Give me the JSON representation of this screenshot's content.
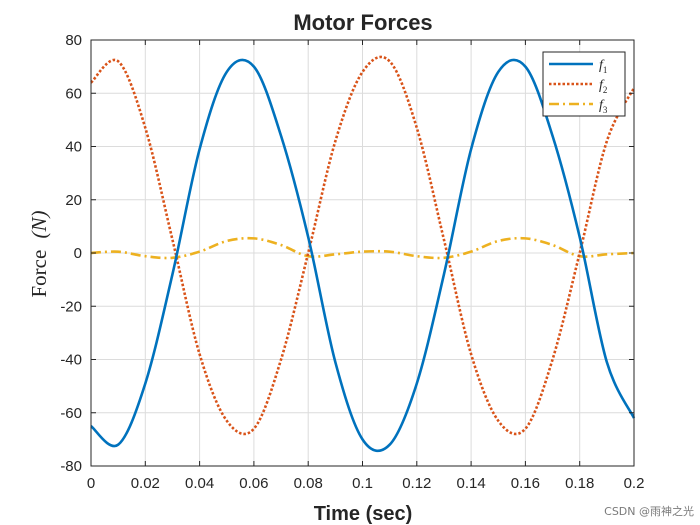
{
  "chart_data": {
    "type": "line",
    "title": "Motor Forces",
    "xlabel": "Time (sec)",
    "ylabel": "Force",
    "ylabel_unit": "(N)",
    "xlim": [
      0,
      0.2
    ],
    "ylim": [
      -80,
      80
    ],
    "grid": true,
    "legend_position": "top-right",
    "xticks": [
      0,
      0.02,
      0.04,
      0.06,
      0.08,
      0.1,
      0.12,
      0.14,
      0.16,
      0.18,
      0.2
    ],
    "xtick_labels": [
      "0",
      "0.02",
      "0.04",
      "0.06",
      "0.08",
      "0.1",
      "0.12",
      "0.14",
      "0.16",
      "0.18",
      "0.2"
    ],
    "yticks": [
      -80,
      -60,
      -40,
      -20,
      0,
      20,
      40,
      60,
      80
    ],
    "ytick_labels": [
      "-80",
      "-60",
      "-40",
      "-20",
      "0",
      "20",
      "40",
      "60",
      "80"
    ],
    "series": [
      {
        "name": "f1",
        "label_base": "f",
        "label_sub": "1",
        "color": "#0072BD",
        "style": "solid",
        "x": [
          0,
          0.01,
          0.02,
          0.03,
          0.04,
          0.05,
          0.06,
          0.07,
          0.08,
          0.09,
          0.1,
          0.11,
          0.12,
          0.13,
          0.14,
          0.15,
          0.16,
          0.17,
          0.18,
          0.19,
          0.2
        ],
        "values": [
          -65,
          -72,
          -49,
          -8,
          39,
          68,
          70,
          44,
          6,
          -41,
          -70,
          -72,
          -49,
          -8,
          39,
          68,
          70,
          44,
          6,
          -41,
          -62
        ]
      },
      {
        "name": "f2",
        "label_base": "f",
        "label_sub": "2",
        "color": "#D95319",
        "style": "dotted",
        "x": [
          0,
          0.01,
          0.02,
          0.03,
          0.04,
          0.05,
          0.06,
          0.07,
          0.08,
          0.09,
          0.1,
          0.11,
          0.12,
          0.13,
          0.14,
          0.15,
          0.16,
          0.17,
          0.18,
          0.19,
          0.2
        ],
        "values": [
          64,
          72,
          47,
          5,
          -38,
          -63,
          -66,
          -40,
          0,
          42,
          68,
          72,
          47,
          5,
          -38,
          -63,
          -66,
          -40,
          0,
          42,
          62
        ]
      },
      {
        "name": "f3",
        "label_base": "f",
        "label_sub": "3",
        "color": "#EDB120",
        "style": "dashdot",
        "x": [
          0,
          0.01,
          0.02,
          0.03,
          0.04,
          0.05,
          0.06,
          0.07,
          0.08,
          0.09,
          0.1,
          0.11,
          0.12,
          0.13,
          0.14,
          0.15,
          0.16,
          0.17,
          0.18,
          0.19,
          0.2
        ],
        "values": [
          0,
          0.5,
          -1.2,
          -1.8,
          0.5,
          4.5,
          5.5,
          3.0,
          -1.2,
          -0.5,
          0.5,
          0.5,
          -1.2,
          -1.8,
          0.5,
          4.5,
          5.5,
          3.0,
          -1.2,
          -0.5,
          0
        ]
      }
    ]
  },
  "watermark": "CSDN @雨神之光"
}
